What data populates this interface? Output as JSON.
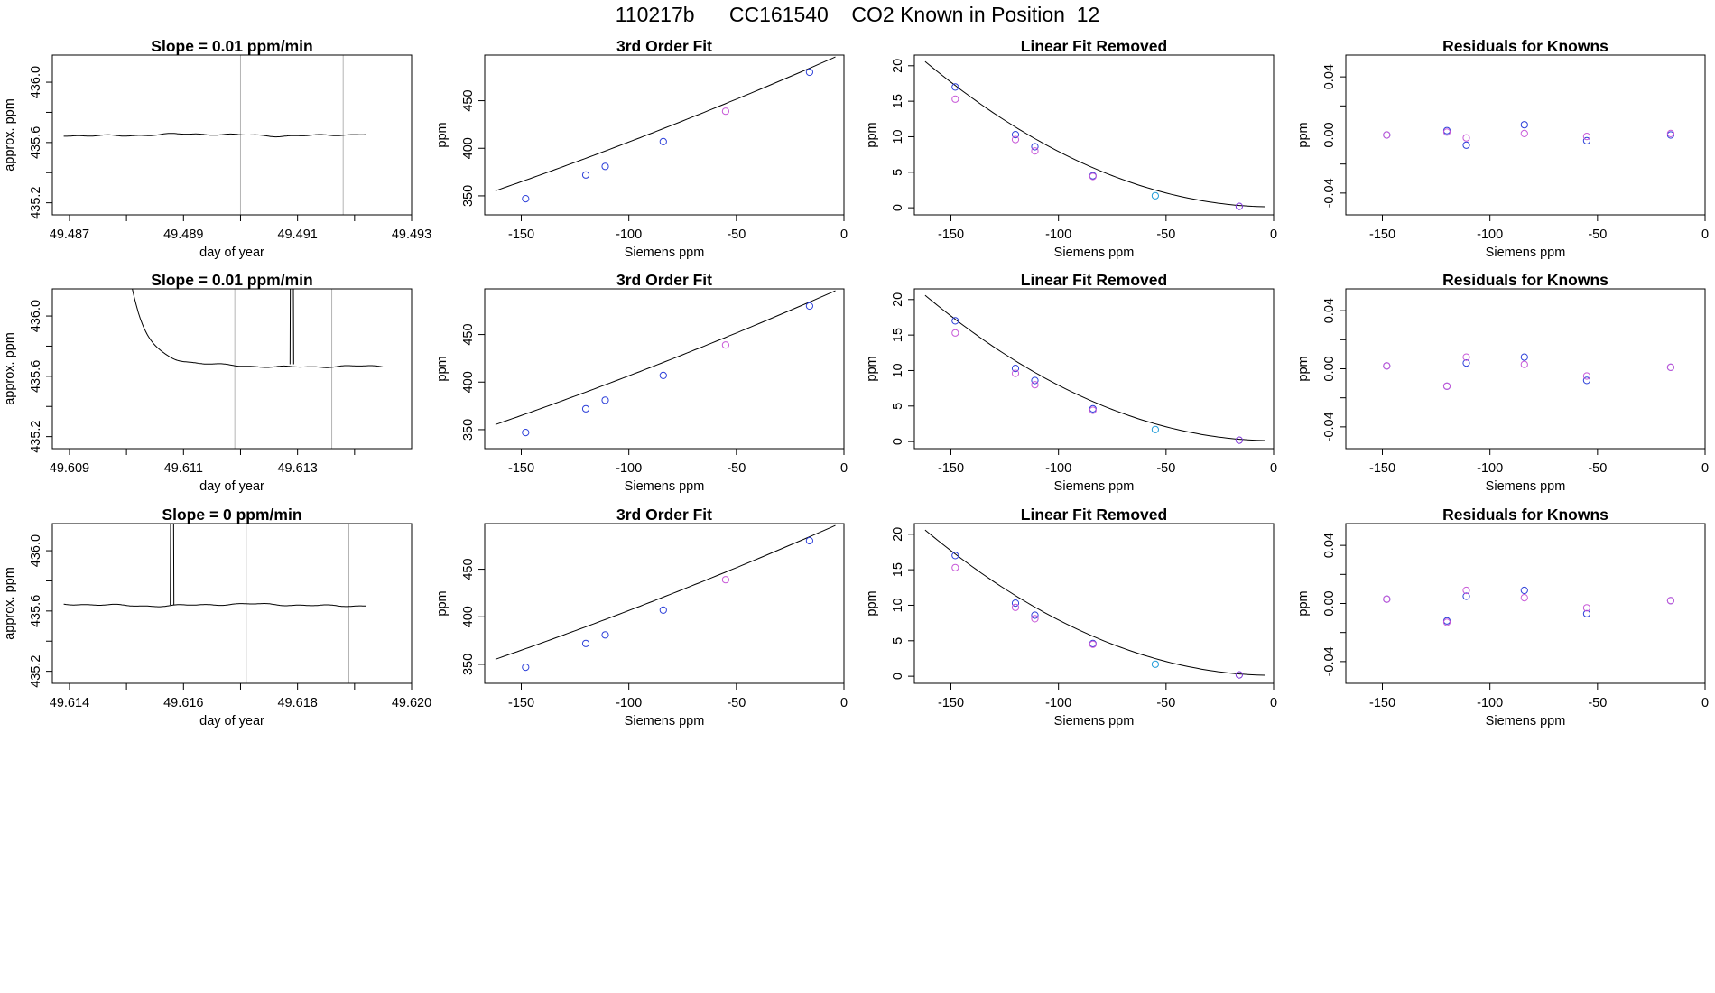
{
  "figure": {
    "title": "110217b      CC161540    CO2 Known in Position  12"
  },
  "colors": {
    "axis": "#000000",
    "trace": "#000000",
    "guide": "#b4b4b4",
    "pointBlue": "#2c3fd9",
    "pointMagenta": "#c85ad8",
    "pointCyan": "#1f9bd8",
    "pointPurple": "#7a2fd6"
  },
  "chart_data": [
    {
      "type": "line",
      "row": 0,
      "col": 0,
      "title": "Slope =  0.01  ppm/min",
      "xlabel": "day of year",
      "ylabel": "approx. ppm",
      "xlim": [
        49.4867,
        49.493
      ],
      "ylim": [
        435.12,
        436.18
      ],
      "xticks": [
        49.487,
        49.488,
        49.489,
        49.49,
        49.491,
        49.492,
        49.493
      ],
      "xtick_labels": [
        "49.487",
        "",
        "49.489",
        "",
        "49.491",
        "",
        "49.493"
      ],
      "yticks": [
        435.2,
        435.4,
        435.6,
        435.8,
        436.0
      ],
      "ytick_labels": [
        "435.2",
        "",
        "435.6",
        "",
        "436.0"
      ],
      "vlines": [
        49.49,
        49.4918
      ],
      "trace": {
        "start": 49.4869,
        "end": 49.4922,
        "base": 435.65,
        "drift": 0.0,
        "features": [
          {
            "kind": "rise_end",
            "at": 49.4922,
            "to": 436.5
          }
        ]
      }
    },
    {
      "type": "line",
      "row": 1,
      "col": 0,
      "title": "Slope =  0.01  ppm/min",
      "xlabel": "day of year",
      "ylabel": "approx. ppm",
      "xlim": [
        49.6087,
        49.615
      ],
      "ylim": [
        435.12,
        436.18
      ],
      "xticks": [
        49.609,
        49.61,
        49.611,
        49.612,
        49.613,
        49.614
      ],
      "xtick_labels": [
        "49.609",
        "",
        "49.611",
        "",
        "49.613",
        ""
      ],
      "yticks": [
        435.2,
        435.4,
        435.6,
        435.8,
        436.0
      ],
      "ytick_labels": [
        "435.2",
        "",
        "435.6",
        "",
        "436.0"
      ],
      "vlines": [
        49.6119,
        49.6136
      ],
      "trace": {
        "start": 49.61,
        "end": 49.6145,
        "base": 435.68,
        "drift": -0.02,
        "features": [
          {
            "kind": "decay_start",
            "from": 436.4,
            "tau": 0.00028
          },
          {
            "kind": "spike",
            "at": 49.6129,
            "to": 436.5
          }
        ]
      }
    },
    {
      "type": "line",
      "row": 2,
      "col": 0,
      "title": "Slope =  0  ppm/min",
      "xlabel": "day of year",
      "ylabel": "approx. ppm",
      "xlim": [
        49.6137,
        49.62
      ],
      "ylim": [
        435.12,
        436.18
      ],
      "xticks": [
        49.614,
        49.615,
        49.616,
        49.617,
        49.618,
        49.619,
        49.62
      ],
      "xtick_labels": [
        "49.614",
        "",
        "49.616",
        "",
        "49.618",
        "",
        "49.620"
      ],
      "yticks": [
        435.2,
        435.4,
        435.6,
        435.8,
        436.0
      ],
      "ytick_labels": [
        "435.2",
        "",
        "435.6",
        "",
        "436.0"
      ],
      "vlines": [
        49.6171,
        49.6189
      ],
      "trace": {
        "start": 49.6139,
        "end": 49.6192,
        "base": 435.64,
        "drift": 0.0,
        "features": [
          {
            "kind": "spike",
            "at": 49.6158,
            "to": 436.5
          },
          {
            "kind": "rise_end",
            "at": 49.6192,
            "to": 436.5
          }
        ]
      }
    },
    {
      "type": "scatter",
      "row": 0,
      "col": 1,
      "title": "3rd Order Fit",
      "xlabel": "Siemens ppm",
      "ylabel": "ppm",
      "xlim": [
        -167,
        0
      ],
      "ylim": [
        330,
        498
      ],
      "xticks": [
        -150,
        -100,
        -50,
        0
      ],
      "xtick_labels": [
        "-150",
        "-100",
        "-50",
        "0"
      ],
      "yticks": [
        350,
        400,
        450
      ],
      "ytick_labels": [
        "350",
        "400",
        "450"
      ],
      "curve": {
        "kind": "poly",
        "coef": [
          500.0,
          1.0,
          0.00066,
          0.0
        ],
        "x0": -162,
        "x1": -4
      },
      "points": [
        [
          -148,
          347,
          "pointBlue"
        ],
        [
          -120,
          372,
          "pointBlue"
        ],
        [
          -111,
          381,
          "pointBlue"
        ],
        [
          -84,
          407,
          "pointBlue"
        ],
        [
          -55,
          439,
          "pointMagenta"
        ],
        [
          -16,
          480,
          "pointBlue"
        ]
      ]
    },
    {
      "type": "scatter",
      "row": 1,
      "col": 1,
      "title": "3rd Order Fit",
      "xlabel": "Siemens ppm",
      "ylabel": "ppm",
      "xlim": [
        -167,
        0
      ],
      "ylim": [
        330,
        498
      ],
      "xticks": [
        -150,
        -100,
        -50,
        0
      ],
      "xtick_labels": [
        "-150",
        "-100",
        "-50",
        "0"
      ],
      "yticks": [
        350,
        400,
        450
      ],
      "ytick_labels": [
        "350",
        "400",
        "450"
      ],
      "curve": {
        "kind": "poly",
        "coef": [
          500.0,
          1.0,
          0.00066,
          0.0
        ],
        "x0": -162,
        "x1": -4
      },
      "points": [
        [
          -148,
          347,
          "pointBlue"
        ],
        [
          -120,
          372,
          "pointBlue"
        ],
        [
          -111,
          381,
          "pointBlue"
        ],
        [
          -84,
          407,
          "pointBlue"
        ],
        [
          -55,
          439,
          "pointMagenta"
        ],
        [
          -16,
          480,
          "pointBlue"
        ]
      ]
    },
    {
      "type": "scatter",
      "row": 2,
      "col": 1,
      "title": "3rd Order Fit",
      "xlabel": "Siemens ppm",
      "ylabel": "ppm",
      "xlim": [
        -167,
        0
      ],
      "ylim": [
        330,
        498
      ],
      "xticks": [
        -150,
        -100,
        -50,
        0
      ],
      "xtick_labels": [
        "-150",
        "-100",
        "-50",
        "0"
      ],
      "yticks": [
        350,
        400,
        450
      ],
      "ytick_labels": [
        "350",
        "400",
        "450"
      ],
      "curve": {
        "kind": "poly",
        "coef": [
          500.0,
          1.0,
          0.00066,
          0.0
        ],
        "x0": -162,
        "x1": -4
      },
      "points": [
        [
          -148,
          347,
          "pointBlue"
        ],
        [
          -120,
          372,
          "pointBlue"
        ],
        [
          -111,
          381,
          "pointBlue"
        ],
        [
          -84,
          407,
          "pointBlue"
        ],
        [
          -55,
          439,
          "pointMagenta"
        ],
        [
          -16,
          480,
          "pointBlue"
        ]
      ]
    },
    {
      "type": "scatter",
      "row": 0,
      "col": 2,
      "title": "Linear Fit Removed",
      "xlabel": "Siemens ppm",
      "ylabel": "ppm",
      "xlim": [
        -167,
        0
      ],
      "ylim": [
        -1,
        21.5
      ],
      "xticks": [
        -150,
        -100,
        -50,
        0
      ],
      "xtick_labels": [
        "-150",
        "-100",
        "-50",
        "0"
      ],
      "yticks": [
        0,
        5,
        10,
        15,
        20
      ],
      "ytick_labels": [
        "0",
        "5",
        "10",
        "15",
        "20"
      ],
      "curve": {
        "kind": "poly",
        "coef": [
          0.13,
          0.0,
          0.00078,
          0.0
        ],
        "x0": -162,
        "x1": -4
      },
      "points": [
        [
          -148,
          17.0,
          "pointBlue"
        ],
        [
          -148,
          15.3,
          "pointMagenta"
        ],
        [
          -120,
          10.3,
          "pointBlue"
        ],
        [
          -120,
          9.6,
          "pointMagenta"
        ],
        [
          -111,
          8.6,
          "pointBlue"
        ],
        [
          -111,
          8.0,
          "pointMagenta"
        ],
        [
          -84,
          4.5,
          "pointBlue"
        ],
        [
          -84,
          4.4,
          "pointMagenta"
        ],
        [
          -55,
          1.7,
          "pointCyan"
        ],
        [
          -16,
          0.2,
          "pointPurple"
        ]
      ]
    },
    {
      "type": "scatter",
      "row": 1,
      "col": 2,
      "title": "Linear Fit Removed",
      "xlabel": "Siemens ppm",
      "ylabel": "ppm",
      "xlim": [
        -167,
        0
      ],
      "ylim": [
        -1,
        21.5
      ],
      "xticks": [
        -150,
        -100,
        -50,
        0
      ],
      "xtick_labels": [
        "-150",
        "-100",
        "-50",
        "0"
      ],
      "yticks": [
        0,
        5,
        10,
        15,
        20
      ],
      "ytick_labels": [
        "0",
        "5",
        "10",
        "15",
        "20"
      ],
      "curve": {
        "kind": "poly",
        "coef": [
          0.13,
          0.0,
          0.00078,
          0.0
        ],
        "x0": -162,
        "x1": -4
      },
      "points": [
        [
          -148,
          17.0,
          "pointBlue"
        ],
        [
          -148,
          15.3,
          "pointMagenta"
        ],
        [
          -120,
          10.3,
          "pointBlue"
        ],
        [
          -120,
          9.6,
          "pointMagenta"
        ],
        [
          -111,
          8.6,
          "pointBlue"
        ],
        [
          -111,
          8.0,
          "pointMagenta"
        ],
        [
          -84,
          4.6,
          "pointBlue"
        ],
        [
          -84,
          4.4,
          "pointMagenta"
        ],
        [
          -55,
          1.7,
          "pointCyan"
        ],
        [
          -16,
          0.2,
          "pointPurple"
        ]
      ]
    },
    {
      "type": "scatter",
      "row": 2,
      "col": 2,
      "title": "Linear Fit Removed",
      "xlabel": "Siemens ppm",
      "ylabel": "ppm",
      "xlim": [
        -167,
        0
      ],
      "ylim": [
        -1,
        21.5
      ],
      "xticks": [
        -150,
        -100,
        -50,
        0
      ],
      "xtick_labels": [
        "-150",
        "-100",
        "-50",
        "0"
      ],
      "yticks": [
        0,
        5,
        10,
        15,
        20
      ],
      "ytick_labels": [
        "0",
        "5",
        "10",
        "15",
        "20"
      ],
      "curve": {
        "kind": "poly",
        "coef": [
          0.13,
          0.0,
          0.00078,
          0.0
        ],
        "x0": -162,
        "x1": -4
      },
      "points": [
        [
          -148,
          17.0,
          "pointBlue"
        ],
        [
          -148,
          15.3,
          "pointMagenta"
        ],
        [
          -120,
          10.3,
          "pointBlue"
        ],
        [
          -120,
          9.7,
          "pointMagenta"
        ],
        [
          -111,
          8.6,
          "pointBlue"
        ],
        [
          -111,
          8.1,
          "pointMagenta"
        ],
        [
          -84,
          4.6,
          "pointBlue"
        ],
        [
          -84,
          4.5,
          "pointMagenta"
        ],
        [
          -55,
          1.7,
          "pointCyan"
        ],
        [
          -16,
          0.2,
          "pointPurple"
        ]
      ]
    },
    {
      "type": "scatter",
      "row": 0,
      "col": 3,
      "title": "Residuals for Knowns",
      "xlabel": "Siemens ppm",
      "ylabel": "ppm",
      "xlim": [
        -167,
        0
      ],
      "ylim": [
        -0.055,
        0.055
      ],
      "xticks": [
        -150,
        -100,
        -50,
        0
      ],
      "xtick_labels": [
        "-150",
        "-100",
        "-50",
        "0"
      ],
      "yticks": [
        -0.04,
        -0.02,
        0.0,
        0.02,
        0.04
      ],
      "ytick_labels": [
        "-0.04",
        "",
        "0.00",
        "",
        "0.04"
      ],
      "points": [
        [
          -148,
          0.0,
          "pointBlue"
        ],
        [
          -148,
          0.0,
          "pointMagenta"
        ],
        [
          -120,
          0.003,
          "pointBlue"
        ],
        [
          -120,
          0.002,
          "pointMagenta"
        ],
        [
          -111,
          -0.007,
          "pointBlue"
        ],
        [
          -111,
          -0.002,
          "pointMagenta"
        ],
        [
          -84,
          0.007,
          "pointBlue"
        ],
        [
          -84,
          0.001,
          "pointMagenta"
        ],
        [
          -55,
          -0.004,
          "pointBlue"
        ],
        [
          -55,
          -0.001,
          "pointMagenta"
        ],
        [
          -16,
          0.0,
          "pointBlue"
        ],
        [
          -16,
          0.001,
          "pointMagenta"
        ]
      ]
    },
    {
      "type": "scatter",
      "row": 1,
      "col": 3,
      "title": "Residuals for Knowns",
      "xlabel": "Siemens ppm",
      "ylabel": "ppm",
      "xlim": [
        -167,
        0
      ],
      "ylim": [
        -0.055,
        0.055
      ],
      "xticks": [
        -150,
        -100,
        -50,
        0
      ],
      "xtick_labels": [
        "-150",
        "-100",
        "-50",
        "0"
      ],
      "yticks": [
        -0.04,
        -0.02,
        0.0,
        0.02,
        0.04
      ],
      "ytick_labels": [
        "-0.04",
        "",
        "0.00",
        "",
        "0.04"
      ],
      "points": [
        [
          -148,
          0.002,
          "pointBlue"
        ],
        [
          -148,
          0.002,
          "pointMagenta"
        ],
        [
          -120,
          -0.012,
          "pointBlue"
        ],
        [
          -120,
          -0.012,
          "pointMagenta"
        ],
        [
          -111,
          0.004,
          "pointBlue"
        ],
        [
          -111,
          0.008,
          "pointMagenta"
        ],
        [
          -84,
          0.008,
          "pointBlue"
        ],
        [
          -84,
          0.003,
          "pointMagenta"
        ],
        [
          -55,
          -0.008,
          "pointBlue"
        ],
        [
          -55,
          -0.005,
          "pointMagenta"
        ],
        [
          -16,
          0.001,
          "pointBlue"
        ],
        [
          -16,
          0.001,
          "pointMagenta"
        ]
      ]
    },
    {
      "type": "scatter",
      "row": 2,
      "col": 3,
      "title": "Residuals for Knowns",
      "xlabel": "Siemens ppm",
      "ylabel": "ppm",
      "xlim": [
        -167,
        0
      ],
      "ylim": [
        -0.055,
        0.055
      ],
      "xticks": [
        -150,
        -100,
        -50,
        0
      ],
      "xtick_labels": [
        "-150",
        "-100",
        "-50",
        "0"
      ],
      "yticks": [
        -0.04,
        -0.02,
        0.0,
        0.02,
        0.04
      ],
      "ytick_labels": [
        "-0.04",
        "",
        "0.00",
        "",
        "0.04"
      ],
      "points": [
        [
          -148,
          0.003,
          "pointBlue"
        ],
        [
          -148,
          0.003,
          "pointMagenta"
        ],
        [
          -120,
          -0.012,
          "pointBlue"
        ],
        [
          -120,
          -0.013,
          "pointMagenta"
        ],
        [
          -111,
          0.005,
          "pointBlue"
        ],
        [
          -111,
          0.009,
          "pointMagenta"
        ],
        [
          -84,
          0.009,
          "pointBlue"
        ],
        [
          -84,
          0.004,
          "pointMagenta"
        ],
        [
          -55,
          -0.007,
          "pointBlue"
        ],
        [
          -55,
          -0.003,
          "pointMagenta"
        ],
        [
          -16,
          0.002,
          "pointBlue"
        ],
        [
          -16,
          0.002,
          "pointMagenta"
        ]
      ]
    }
  ]
}
